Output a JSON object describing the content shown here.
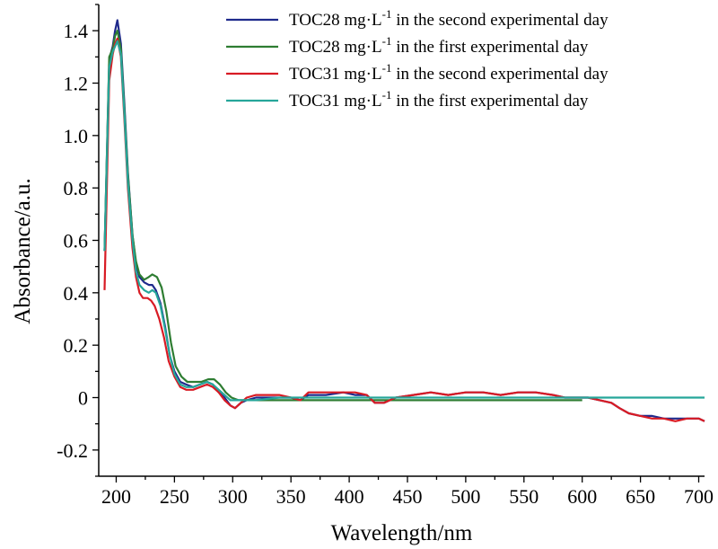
{
  "chart_data": {
    "type": "line",
    "title": "",
    "xlabel": "Wavelength/nm",
    "ylabel": "Absorbance/a.u.",
    "xlim": [
      185,
      705
    ],
    "ylim": [
      -0.3,
      1.5
    ],
    "xticks": [
      200,
      250,
      300,
      350,
      400,
      450,
      500,
      550,
      600,
      650,
      700
    ],
    "yticks": [
      -0.2,
      0,
      0.2,
      0.4,
      0.6,
      0.8,
      1.0,
      1.2,
      1.4
    ],
    "ytick_labels": [
      "-0.2",
      "0",
      "0.2",
      "0.4",
      "0.6",
      "0.8",
      "1.0",
      "1.2",
      "1.4"
    ],
    "legend_position": "top-right",
    "grid": false,
    "series": [
      {
        "name": "TOC28 mg·L-1 in the second experimental day",
        "legend_prefix": "TOC28 mg·L",
        "legend_sup": "-1",
        "legend_suffix": " in the second experimental day",
        "color": "#1f2a8c",
        "points": [
          [
            190,
            0.56
          ],
          [
            194,
            1.29
          ],
          [
            197,
            1.34
          ],
          [
            199,
            1.4
          ],
          [
            201,
            1.44
          ],
          [
            204,
            1.35
          ],
          [
            207,
            1.12
          ],
          [
            210,
            0.86
          ],
          [
            214,
            0.62
          ],
          [
            217,
            0.51
          ],
          [
            220,
            0.46
          ],
          [
            224,
            0.44
          ],
          [
            228,
            0.43
          ],
          [
            231,
            0.43
          ],
          [
            234,
            0.41
          ],
          [
            238,
            0.36
          ],
          [
            242,
            0.27
          ],
          [
            246,
            0.16
          ],
          [
            250,
            0.1
          ],
          [
            255,
            0.06
          ],
          [
            260,
            0.05
          ],
          [
            266,
            0.04
          ],
          [
            272,
            0.05
          ],
          [
            278,
            0.06
          ],
          [
            283,
            0.05
          ],
          [
            288,
            0.02
          ],
          [
            293,
            0.0
          ],
          [
            298,
            -0.03
          ],
          [
            302,
            -0.04
          ],
          [
            307,
            -0.02
          ],
          [
            312,
            -0.01
          ],
          [
            320,
            0.0
          ],
          [
            330,
            0.0
          ],
          [
            340,
            0.0
          ],
          [
            350,
            0.0
          ],
          [
            358,
            -0.01
          ],
          [
            365,
            0.01
          ],
          [
            380,
            0.01
          ],
          [
            395,
            0.02
          ],
          [
            405,
            0.01
          ],
          [
            415,
            0.01
          ],
          [
            422,
            -0.02
          ],
          [
            430,
            -0.02
          ],
          [
            440,
            0.0
          ],
          [
            455,
            0.01
          ],
          [
            470,
            0.02
          ],
          [
            485,
            0.01
          ],
          [
            500,
            0.02
          ],
          [
            515,
            0.02
          ],
          [
            530,
            0.01
          ],
          [
            545,
            0.02
          ],
          [
            560,
            0.02
          ],
          [
            575,
            0.01
          ],
          [
            585,
            0.0
          ],
          [
            595,
            0.0
          ],
          [
            605,
            0.0
          ],
          [
            615,
            -0.01
          ],
          [
            625,
            -0.02
          ],
          [
            632,
            -0.04
          ],
          [
            640,
            -0.06
          ],
          [
            650,
            -0.07
          ],
          [
            660,
            -0.07
          ],
          [
            670,
            -0.08
          ],
          [
            680,
            -0.08
          ],
          [
            690,
            -0.08
          ],
          [
            700,
            -0.08
          ],
          [
            705,
            -0.09
          ]
        ]
      },
      {
        "name": "TOC28 mg·L-1 in the first experimental day",
        "legend_prefix": "TOC28 mg·L",
        "legend_sup": "-1",
        "legend_suffix": " in the first experimental day",
        "color": "#2e7d32",
        "points": [
          [
            190,
            0.56
          ],
          [
            194,
            1.3
          ],
          [
            197,
            1.33
          ],
          [
            199,
            1.38
          ],
          [
            201,
            1.4
          ],
          [
            204,
            1.33
          ],
          [
            207,
            1.1
          ],
          [
            210,
            0.85
          ],
          [
            214,
            0.62
          ],
          [
            217,
            0.52
          ],
          [
            220,
            0.47
          ],
          [
            224,
            0.45
          ],
          [
            228,
            0.46
          ],
          [
            231,
            0.47
          ],
          [
            235,
            0.46
          ],
          [
            239,
            0.42
          ],
          [
            243,
            0.33
          ],
          [
            247,
            0.21
          ],
          [
            251,
            0.12
          ],
          [
            256,
            0.08
          ],
          [
            261,
            0.06
          ],
          [
            267,
            0.06
          ],
          [
            273,
            0.06
          ],
          [
            279,
            0.07
          ],
          [
            284,
            0.07
          ],
          [
            289,
            0.05
          ],
          [
            294,
            0.02
          ],
          [
            299,
            0.0
          ],
          [
            305,
            -0.01
          ],
          [
            312,
            -0.01
          ],
          [
            325,
            -0.01
          ],
          [
            350,
            -0.01
          ],
          [
            400,
            -0.01
          ],
          [
            450,
            -0.01
          ],
          [
            500,
            -0.01
          ],
          [
            550,
            -0.01
          ],
          [
            600,
            -0.01
          ]
        ]
      },
      {
        "name": "TOC31 mg·L-1 in the second experimental day",
        "legend_prefix": "TOC31 mg·L",
        "legend_sup": "-1",
        "legend_suffix": " in the second experimental day",
        "color": "#d81b24",
        "points": [
          [
            190,
            0.41
          ],
          [
            194,
            1.21
          ],
          [
            197,
            1.31
          ],
          [
            199,
            1.35
          ],
          [
            201,
            1.37
          ],
          [
            204,
            1.3
          ],
          [
            207,
            1.06
          ],
          [
            210,
            0.8
          ],
          [
            214,
            0.57
          ],
          [
            217,
            0.46
          ],
          [
            220,
            0.4
          ],
          [
            223,
            0.38
          ],
          [
            227,
            0.38
          ],
          [
            230,
            0.37
          ],
          [
            233,
            0.35
          ],
          [
            237,
            0.3
          ],
          [
            241,
            0.23
          ],
          [
            245,
            0.14
          ],
          [
            250,
            0.08
          ],
          [
            255,
            0.04
          ],
          [
            260,
            0.03
          ],
          [
            266,
            0.03
          ],
          [
            272,
            0.04
          ],
          [
            278,
            0.05
          ],
          [
            283,
            0.04
          ],
          [
            288,
            0.02
          ],
          [
            293,
            -0.01
          ],
          [
            298,
            -0.03
          ],
          [
            302,
            -0.04
          ],
          [
            307,
            -0.02
          ],
          [
            312,
            0.0
          ],
          [
            320,
            0.01
          ],
          [
            330,
            0.01
          ],
          [
            340,
            0.01
          ],
          [
            350,
            0.0
          ],
          [
            358,
            -0.01
          ],
          [
            365,
            0.02
          ],
          [
            380,
            0.02
          ],
          [
            395,
            0.02
          ],
          [
            405,
            0.02
          ],
          [
            415,
            0.01
          ],
          [
            422,
            -0.02
          ],
          [
            430,
            -0.02
          ],
          [
            440,
            0.0
          ],
          [
            455,
            0.01
          ],
          [
            470,
            0.02
          ],
          [
            485,
            0.01
          ],
          [
            500,
            0.02
          ],
          [
            515,
            0.02
          ],
          [
            530,
            0.01
          ],
          [
            545,
            0.02
          ],
          [
            560,
            0.02
          ],
          [
            575,
            0.01
          ],
          [
            585,
            0.0
          ],
          [
            595,
            0.0
          ],
          [
            605,
            0.0
          ],
          [
            615,
            -0.01
          ],
          [
            625,
            -0.02
          ],
          [
            632,
            -0.04
          ],
          [
            640,
            -0.06
          ],
          [
            650,
            -0.07
          ],
          [
            660,
            -0.08
          ],
          [
            670,
            -0.08
          ],
          [
            680,
            -0.09
          ],
          [
            690,
            -0.08
          ],
          [
            700,
            -0.08
          ],
          [
            705,
            -0.09
          ]
        ]
      },
      {
        "name": "TOC31 mg·L-1 in the first experimental day",
        "legend_prefix": "TOC31 mg·L",
        "legend_sup": "-1",
        "legend_suffix": " in the first experimental day",
        "color": "#26a69a",
        "points": [
          [
            190,
            0.56
          ],
          [
            194,
            1.26
          ],
          [
            197,
            1.32
          ],
          [
            199,
            1.34
          ],
          [
            201,
            1.36
          ],
          [
            204,
            1.31
          ],
          [
            207,
            1.08
          ],
          [
            210,
            0.82
          ],
          [
            214,
            0.6
          ],
          [
            217,
            0.48
          ],
          [
            220,
            0.43
          ],
          [
            224,
            0.41
          ],
          [
            228,
            0.4
          ],
          [
            231,
            0.41
          ],
          [
            234,
            0.4
          ],
          [
            238,
            0.35
          ],
          [
            242,
            0.26
          ],
          [
            246,
            0.16
          ],
          [
            250,
            0.09
          ],
          [
            255,
            0.05
          ],
          [
            260,
            0.04
          ],
          [
            266,
            0.04
          ],
          [
            272,
            0.05
          ],
          [
            278,
            0.06
          ],
          [
            283,
            0.05
          ],
          [
            288,
            0.03
          ],
          [
            293,
            0.01
          ],
          [
            298,
            -0.01
          ],
          [
            303,
            -0.01
          ],
          [
            310,
            -0.01
          ],
          [
            320,
            -0.01
          ],
          [
            340,
            0.0
          ],
          [
            360,
            0.0
          ],
          [
            380,
            0.0
          ],
          [
            400,
            0.0
          ],
          [
            420,
            0.0
          ],
          [
            440,
            0.0
          ],
          [
            460,
            0.0
          ],
          [
            480,
            0.0
          ],
          [
            500,
            0.0
          ],
          [
            520,
            0.0
          ],
          [
            540,
            0.0
          ],
          [
            560,
            0.0
          ],
          [
            580,
            0.0
          ],
          [
            600,
            0.0
          ],
          [
            620,
            0.0
          ],
          [
            640,
            0.0
          ],
          [
            660,
            0.0
          ],
          [
            680,
            0.0
          ],
          [
            700,
            0.0
          ],
          [
            705,
            0.0
          ]
        ]
      }
    ]
  }
}
